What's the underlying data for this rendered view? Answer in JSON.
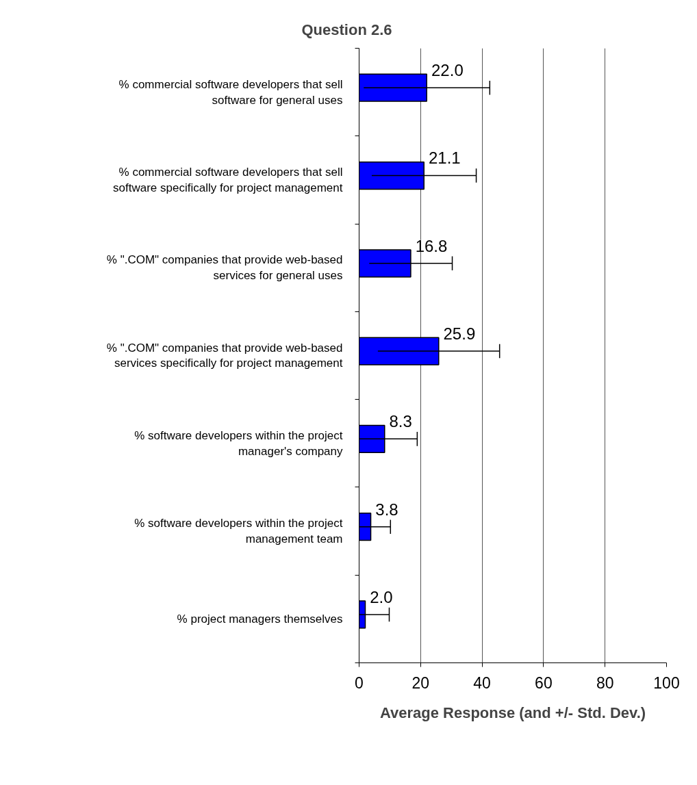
{
  "chart_data": {
    "type": "bar",
    "orientation": "horizontal",
    "title": "Question 2.6",
    "xlabel": "Average Response (and +/- Std. Dev.)",
    "categories": [
      "% commercial software developers that sell software for general uses",
      "% commercial software developers that sell software specifically for project management",
      "% \".COM\" companies that provide web-based services for general uses",
      "% \".COM\" companies that provide web-based services specifically for project management",
      "% software developers within the project manager's company",
      "% software developers within the project management team",
      "% project managers themselves"
    ],
    "values": [
      22.0,
      21.1,
      16.8,
      25.9,
      8.3,
      3.8,
      2.0
    ],
    "errors": [
      20.5,
      17.0,
      13.5,
      19.8,
      [
        0,
        18.9
      ],
      [
        0,
        10.2
      ],
      [
        0,
        9.8
      ]
    ],
    "value_labels": [
      "22.0",
      "21.1",
      "16.8",
      "25.9",
      "8.3",
      "3.8",
      "2.0"
    ],
    "color": "#0000ff",
    "xlim": [
      0,
      100
    ],
    "xticks": [
      0,
      20,
      40,
      60,
      80,
      100
    ],
    "grid": "x"
  }
}
